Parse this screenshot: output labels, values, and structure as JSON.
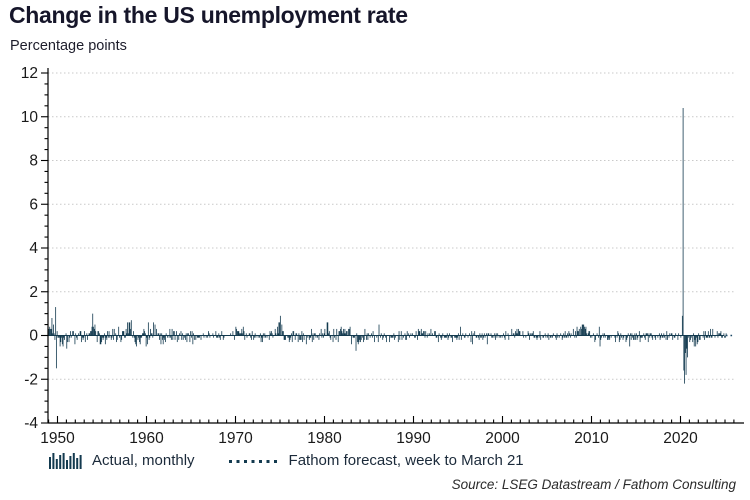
{
  "colors": {
    "accent_bar": "#133a4f",
    "forecast_line": "#1c4866",
    "gridline": "#c9c9c9",
    "axis_line": "#000000",
    "title_text": "#16162a",
    "tick_text": "#1a1a1a",
    "source_text": "#2b2b2b"
  },
  "chart_data": {
    "type": "bar",
    "title": "Change in the US unemployment rate",
    "units_label": "Percentage points",
    "source": "Source: LSEG Datastream / Fathom Consulting",
    "grid": "dotted horizontal gridlines at major y ticks",
    "legend_position": "bottom",
    "x_axis": {
      "major_ticks": [
        1950,
        1960,
        1970,
        1980,
        1990,
        2000,
        2010,
        2020
      ],
      "minor_step_years": 1,
      "xlim": [
        1948.9,
        2026.2
      ]
    },
    "y_axis": {
      "major_ticks": [
        12,
        10,
        8,
        6,
        4,
        2,
        0,
        -2,
        -4
      ],
      "minor_step": 0.5,
      "ylim": [
        -4,
        12
      ]
    },
    "series": [
      {
        "name": "Actual, monthly",
        "type": "bar",
        "color": "#133a4f",
        "first_year": 1949,
        "units": "percentage points, month-on-month change",
        "monthly_changes_by_year": [
          [
            0.3,
            0.4,
            0.3,
            0.3,
            0.8,
            0.1,
            0.5,
            0.1,
            -0.2,
            1.3,
            -1.5,
            0.2
          ],
          [
            -0.1,
            -0.1,
            -0.1,
            -0.5,
            -0.3,
            -0.1,
            -0.4,
            -0.5,
            -0.1,
            -0.2,
            0,
            0.1
          ],
          [
            -0.6,
            -0.3,
            0,
            -0.3,
            -0.1,
            0.2,
            -0.1,
            0,
            0.2,
            0.2,
            0,
            -0.4
          ],
          [
            0.1,
            -0.1,
            -0.2,
            0,
            0.1,
            0,
            0.2,
            0.2,
            -0.3,
            -0.1,
            -0.2,
            -0.1
          ],
          [
            0.2,
            -0.3,
            0,
            0.1,
            -0.2,
            0,
            0.1,
            0.1,
            0.2,
            0.2,
            0.4,
            1.0
          ],
          [
            0.4,
            0.3,
            0.5,
            0.2,
            0,
            -0.3,
            0.2,
            0.2,
            0.1,
            -0.4,
            -0.4,
            -0.3
          ],
          [
            -0.1,
            -0.2,
            -0.1,
            0.1,
            -0.4,
            -0.1,
            -0.2,
            0.2,
            -0.1,
            0.2,
            -0.1,
            0
          ],
          [
            -0.2,
            -0.1,
            0.3,
            -0.2,
            0.3,
            0,
            0.1,
            -0.3,
            -0.2,
            0,
            0.4,
            -0.1
          ],
          [
            0,
            -0.3,
            -0.2,
            0.2,
            0.2,
            0.2,
            -0.1,
            -0.1,
            0.3,
            0.1,
            0.6,
            0.1
          ],
          [
            0.6,
            0.6,
            0.3,
            0.7,
            0,
            -0.1,
            0.2,
            -0.1,
            -0.3,
            -0.4,
            -0.5,
            0
          ],
          [
            -0.2,
            -0.1,
            -0.3,
            -0.4,
            -0.1,
            -0.1,
            0.1,
            0.1,
            0.3,
            0.2,
            0.1,
            -0.5
          ],
          [
            -0.1,
            -0.4,
            0.6,
            -0.2,
            -0.1,
            0.3,
            0.1,
            0.1,
            -0.1,
            0.6,
            0,
            0.5
          ],
          [
            0,
            0.3,
            0,
            0.1,
            0.1,
            -0.2,
            0.1,
            -0.4,
            0.1,
            -0.2,
            -0.4,
            -0.1
          ],
          [
            -0.2,
            -0.3,
            0.1,
            0,
            -0.1,
            0,
            -0.1,
            0.3,
            -0.1,
            -0.2,
            0.3,
            -0.2
          ],
          [
            0.2,
            0.2,
            -0.2,
            0,
            0.2,
            -0.3,
            0,
            -0.2,
            0.1,
            0,
            0.2,
            -0.2
          ],
          [
            0.1,
            -0.2,
            0,
            -0.1,
            -0.2,
            0.1,
            -0.3,
            0.1,
            0.1,
            0,
            -0.3,
            0.2
          ],
          [
            -0.1,
            0.2,
            -0.4,
            0.1,
            -0.2,
            0,
            -0.2,
            0,
            -0.1,
            -0.1,
            -0.1,
            -0.1
          ],
          [
            0,
            -0.2,
            0,
            0,
            0.1,
            -0.1,
            0,
            0,
            -0.1,
            0,
            -0.1,
            0.2
          ],
          [
            0.1,
            -0.1,
            0,
            0,
            0,
            0.1,
            -0.1,
            0,
            0,
            0.2,
            -0.1,
            -0.1
          ],
          [
            -0.1,
            0.1,
            -0.1,
            -0.2,
            0,
            0.2,
            0,
            -0.2,
            -0.1,
            0,
            0,
            0
          ],
          [
            0,
            0,
            0,
            0,
            0,
            0.1,
            0,
            0,
            0.2,
            0,
            -0.2,
            0
          ],
          [
            0.4,
            0.3,
            0.2,
            0.2,
            0.2,
            0.1,
            0.1,
            0.1,
            0.3,
            0.1,
            0.4,
            0.2
          ],
          [
            -0.2,
            0,
            0.1,
            -0.1,
            0,
            0,
            0.1,
            0.1,
            -0.1,
            -0.2,
            0.2,
            0
          ],
          [
            -0.2,
            -0.1,
            0.1,
            -0.1,
            0,
            0,
            -0.1,
            0,
            -0.1,
            0.1,
            -0.3,
            -0.1
          ],
          [
            -0.3,
            0.1,
            -0.1,
            0.1,
            -0.1,
            0,
            -0.1,
            0,
            0,
            -0.2,
            0.2,
            0.1
          ],
          [
            0.2,
            0.1,
            -0.1,
            0,
            0,
            0.3,
            0.1,
            0,
            0.4,
            0.1,
            0.6,
            0.6
          ],
          [
            0.9,
            0,
            0.5,
            0.2,
            0.2,
            -0.2,
            -0.2,
            -0.2,
            0,
            0,
            -0.1,
            -0.1
          ],
          [
            -0.3,
            -0.2,
            -0.1,
            0.1,
            -0.3,
            0.2,
            0.2,
            0,
            -0.2,
            0.1,
            0.1,
            0
          ],
          [
            -0.3,
            0.1,
            -0.2,
            -0.2,
            -0.2,
            0.2,
            -0.3,
            0.1,
            -0.2,
            0,
            0,
            -0.4
          ],
          [
            0,
            -0.1,
            0,
            -0.2,
            -0.1,
            -0.1,
            0.3,
            -0.3,
            0.1,
            -0.2,
            0.1,
            0.1
          ],
          [
            -0.1,
            0,
            -0.1,
            0,
            -0.2,
            0.1,
            0,
            0.3,
            -0.1,
            0.1,
            -0.1,
            0.1
          ],
          [
            0.3,
            0,
            0,
            0.6,
            0.6,
            0.1,
            0.2,
            -0.1,
            -0.2,
            0,
            0,
            -0.3
          ],
          [
            0.3,
            -0.1,
            0,
            -0.2,
            0.3,
            0,
            -0.3,
            0.2,
            0.2,
            0.3,
            0.4,
            0.2
          ],
          [
            0.1,
            0.3,
            0.1,
            0.3,
            0.1,
            0.2,
            0.2,
            0,
            0.3,
            0.3,
            0.4,
            0
          ],
          [
            -0.4,
            0,
            -0.1,
            -0.1,
            -0.1,
            0,
            -0.7,
            0.1,
            -0.3,
            -0.4,
            -0.3,
            -0.2
          ],
          [
            -0.3,
            -0.2,
            0,
            -0.1,
            -0.3,
            -0.2,
            0.3,
            0,
            -0.2,
            0.1,
            -0.2,
            0.1
          ],
          [
            0,
            -0.1,
            0,
            0.1,
            -0.1,
            0.2,
            0,
            -0.3,
            0,
            0,
            -0.1,
            0
          ],
          [
            -0.3,
            0.5,
            0,
            -0.1,
            0.1,
            0,
            -0.2,
            -0.1,
            0.1,
            0,
            -0.1,
            -0.3
          ],
          [
            0,
            0,
            0,
            -0.3,
            0,
            -0.1,
            -0.1,
            -0.1,
            -0.1,
            0.1,
            -0.2,
            -0.1
          ],
          [
            0,
            0,
            0,
            -0.3,
            0.2,
            -0.2,
            0,
            0.2,
            -0.2,
            0,
            -0.1,
            0
          ],
          [
            0.1,
            -0.2,
            -0.2,
            0.2,
            0,
            0.1,
            -0.1,
            0,
            0.1,
            0,
            0.1,
            0
          ],
          [
            0,
            -0.1,
            -0.1,
            0.2,
            0,
            -0.2,
            0.3,
            0.2,
            0.2,
            0,
            0.3,
            0.1
          ],
          [
            0.1,
            0.2,
            0.2,
            -0.1,
            0.2,
            0,
            -0.1,
            0.1,
            0,
            0.1,
            0,
            0.3
          ],
          [
            0,
            0.1,
            0,
            0,
            0.2,
            0.2,
            -0.1,
            -0.1,
            0,
            -0.3,
            0.1,
            0
          ],
          [
            -0.1,
            -0.2,
            -0.1,
            0.1,
            0,
            -0.1,
            -0.1,
            -0.1,
            -0.1,
            0.1,
            -0.2,
            -0.1
          ],
          [
            0.1,
            0,
            -0.1,
            -0.1,
            -0.3,
            0,
            0,
            -0.1,
            -0.1,
            -0.1,
            -0.2,
            -0.1
          ],
          [
            0.1,
            -0.2,
            0,
            0.4,
            -0.2,
            0,
            0.1,
            0,
            -0.1,
            -0.1,
            0.1,
            0
          ],
          [
            0,
            -0.1,
            0,
            0.1,
            0,
            -0.3,
            0.2,
            -0.4,
            0.1,
            0,
            0.2,
            0
          ],
          [
            -0.1,
            -0.1,
            0,
            -0.1,
            -0.2,
            0.1,
            -0.1,
            -0.1,
            0.1,
            -0.2,
            -0.1,
            0.1
          ],
          [
            -0.1,
            0,
            0.1,
            -0.4,
            0.1,
            0.1,
            0,
            0,
            0.1,
            -0.1,
            -0.1,
            0
          ],
          [
            -0.1,
            0.1,
            -0.2,
            0.1,
            -0.1,
            0.1,
            0,
            -0.1,
            0,
            -0.1,
            0,
            -0.1
          ],
          [
            0,
            0.1,
            -0.1,
            -0.2,
            0.2,
            0,
            0,
            0.1,
            -0.2,
            0,
            0,
            0
          ],
          [
            0.3,
            0,
            0.1,
            0.1,
            -0.1,
            0.2,
            0.1,
            0.3,
            0.1,
            0.3,
            0.2,
            0.2
          ],
          [
            0,
            0,
            0,
            0.2,
            -0.1,
            0,
            0,
            -0.1,
            0,
            0,
            0.2,
            0.1
          ],
          [
            -0.2,
            0.1,
            0,
            0.1,
            0.1,
            0.2,
            -0.1,
            -0.1,
            0,
            -0.1,
            -0.2,
            -0.1
          ],
          [
            0,
            -0.1,
            0.2,
            -0.2,
            0,
            0,
            -0.1,
            -0.1,
            0,
            0.1,
            -0.1,
            0
          ],
          [
            -0.1,
            0.1,
            -0.2,
            0,
            -0.1,
            -0.1,
            0,
            -0.1,
            0.1,
            0,
            0,
            -0.1
          ],
          [
            -0.2,
            0.1,
            -0.1,
            0,
            -0.1,
            0,
            0.1,
            0,
            -0.2,
            -0.1,
            0.1,
            -0.1
          ],
          [
            0.2,
            -0.1,
            -0.1,
            0.1,
            -0.1,
            0.2,
            0.1,
            -0.1,
            0.1,
            0,
            0,
            0.3
          ],
          [
            0,
            -0.1,
            0.2,
            -0.1,
            0.4,
            0.2,
            0.2,
            0.3,
            0,
            0.4,
            0.3,
            0.5
          ],
          [
            0.5,
            0.5,
            0.4,
            0.3,
            0.4,
            0.1,
            0,
            0.1,
            0.2,
            0.2,
            -0.1,
            0
          ],
          [
            -0.1,
            0,
            0.1,
            0,
            -0.3,
            -0.2,
            0,
            0.1,
            0,
            -0.1,
            0.4,
            -0.5
          ],
          [
            -0.2,
            -0.1,
            0,
            0.1,
            -0.1,
            0.1,
            -0.1,
            0,
            0,
            -0.2,
            -0.2,
            -0.1
          ],
          [
            -0.2,
            0,
            -0.1,
            0,
            0,
            0,
            0,
            -0.1,
            -0.3,
            0,
            -0.1,
            0.2
          ],
          [
            0.1,
            -0.3,
            -0.2,
            0.1,
            -0.1,
            0,
            -0.2,
            -0.1,
            0,
            0,
            -0.3,
            -0.2
          ],
          [
            -0.1,
            0.1,
            0,
            -0.5,
            0.1,
            -0.2,
            0.1,
            -0.1,
            -0.2,
            -0.2,
            0.1,
            -0.2
          ],
          [
            0.1,
            -0.2,
            -0.1,
            0,
            0.2,
            -0.3,
            -0.1,
            -0.1,
            -0.1,
            0,
            0.1,
            -0.1
          ],
          [
            -0.2,
            0.1,
            0.1,
            0.1,
            -0.3,
            0.1,
            -0.1,
            0.1,
            0.1,
            -0.1,
            -0.2,
            0
          ],
          [
            0,
            -0.1,
            -0.2,
            0,
            0,
            -0.1,
            0,
            0.1,
            -0.2,
            -0.1,
            0.1,
            -0.1
          ],
          [
            -0.1,
            0.1,
            -0.1,
            0,
            -0.2,
            0.2,
            -0.2,
            0,
            -0.1,
            0.1,
            0,
            0.1
          ],
          [
            0.1,
            -0.2,
            0,
            -0.1,
            -0.1,
            0.1,
            0,
            0,
            -0.2,
            0.1,
            0,
            0
          ],
          [
            -0.1,
            0,
            0.9,
            10.4,
            -1.6,
            -2.2,
            -0.8,
            -1.8,
            -0.6,
            -1.0,
            -0.1,
            0
          ],
          [
            -0.3,
            -0.2,
            -0.1,
            0,
            -0.3,
            0.1,
            -0.5,
            -0.2,
            -0.5,
            -0.1,
            -0.4,
            -0.3
          ],
          [
            0.1,
            -0.2,
            -0.2,
            0,
            0,
            0,
            -0.1,
            0.2,
            -0.2,
            0.2,
            -0.1,
            -0.1
          ],
          [
            -0.1,
            0.2,
            -0.1,
            -0.1,
            0.3,
            -0.1,
            -0.1,
            0.3,
            0,
            0,
            -0.1,
            0
          ],
          [
            0,
            0.2,
            -0.1,
            0.1,
            0.1,
            0.1,
            0.2,
            -0.1,
            -0.1,
            0,
            0.1,
            -0.1
          ],
          [
            -0.1,
            0.1
          ]
        ]
      },
      {
        "name": "Fathom forecast, week to March 21",
        "type": "dotted-line",
        "color": "#1c4866",
        "points": [
          {
            "x": 2025.1,
            "value": 0.0
          },
          {
            "x": 2025.9,
            "value": 0.0
          }
        ]
      }
    ]
  }
}
